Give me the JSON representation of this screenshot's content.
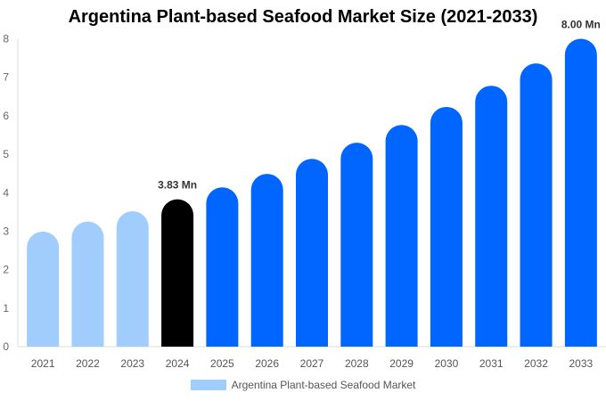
{
  "chart_data": {
    "type": "bar",
    "title": "Argentina Plant-based Seafood Market Size (2021-2033)",
    "categories": [
      "2021",
      "2022",
      "2023",
      "2024",
      "2025",
      "2026",
      "2027",
      "2028",
      "2029",
      "2030",
      "2031",
      "2032",
      "2033"
    ],
    "series": [
      {
        "name": "Argentina Plant-based Seafood Market",
        "values": [
          2.99,
          3.25,
          3.52,
          3.83,
          4.14,
          4.49,
          4.88,
          5.3,
          5.76,
          6.23,
          6.78,
          7.36,
          8.0
        ]
      }
    ],
    "data_labels": {
      "2024": "3.83 Mn",
      "2033": "8.00 Mn"
    },
    "bar_colors": {
      "historical": "#a0cdfc",
      "base_year": "#000000",
      "forecast": "#0066ff"
    },
    "ylim": [
      0,
      8
    ],
    "yticks": [
      0,
      1,
      2,
      3,
      4,
      5,
      6,
      7,
      8
    ],
    "xlabel": "",
    "ylabel": "",
    "grid": false,
    "legend_position": "bottom"
  }
}
